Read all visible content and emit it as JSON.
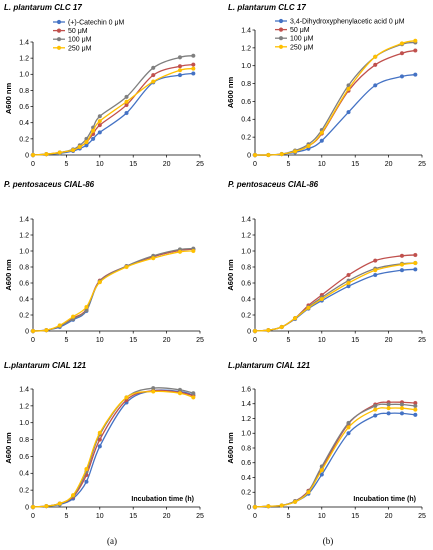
{
  "panel_labels": [
    "(a)",
    "(b)"
  ],
  "colors": [
    "#4472c4",
    "#c0504d",
    "#7f7f7f",
    "#ffc000"
  ],
  "chart_data": [
    {
      "type": "line",
      "title": "L. plantarum CLC 17",
      "ylabel": "A600 nm",
      "xlabel": "",
      "xlim": [
        0,
        25
      ],
      "ylim": [
        0,
        1.4
      ],
      "xticks": [
        0,
        5,
        10,
        15,
        20,
        25
      ],
      "yticks": [
        0,
        0.2,
        0.4,
        0.6,
        0.8,
        1.0,
        1.2,
        1.4
      ],
      "x": [
        0,
        2,
        4,
        6,
        7,
        8,
        9,
        10,
        14,
        18,
        22,
        24
      ],
      "legend": "top-left",
      "series": [
        {
          "name": "(+)-Catechin 0 μM",
          "color": "#4472c4",
          "values": [
            0,
            0.01,
            0.02,
            0.05,
            0.08,
            0.12,
            0.2,
            0.28,
            0.52,
            0.9,
            0.99,
            1.01
          ]
        },
        {
          "name": "50 μM",
          "color": "#c0504d",
          "values": [
            0,
            0.01,
            0.03,
            0.06,
            0.1,
            0.16,
            0.26,
            0.37,
            0.62,
            0.99,
            1.1,
            1.12
          ]
        },
        {
          "name": "100 μM",
          "color": "#7f7f7f",
          "values": [
            0,
            0.01,
            0.03,
            0.07,
            0.12,
            0.2,
            0.34,
            0.48,
            0.72,
            1.08,
            1.21,
            1.23
          ]
        },
        {
          "name": "250 μM",
          "color": "#ffc000",
          "values": [
            0,
            0.01,
            0.03,
            0.06,
            0.1,
            0.16,
            0.3,
            0.42,
            0.66,
            0.91,
            1.05,
            1.07
          ]
        }
      ]
    },
    {
      "type": "line",
      "title": "L. plantarum CLC 17",
      "ylabel": "A600 nm",
      "xlabel": "",
      "xlim": [
        0,
        25
      ],
      "ylim": [
        0,
        1.4
      ],
      "xticks": [
        0,
        5,
        10,
        15,
        20,
        25
      ],
      "yticks": [
        0,
        0.2,
        0.4,
        0.6,
        0.8,
        1.0,
        1.2,
        1.4
      ],
      "x": [
        0,
        2,
        4,
        6,
        8,
        10,
        14,
        18,
        22,
        24
      ],
      "legend": "top-left",
      "series": [
        {
          "name": "3,4-Dihydroxyphenylacetic acid 0 μM",
          "color": "#4472c4",
          "values": [
            0,
            0,
            0.01,
            0.03,
            0.07,
            0.16,
            0.48,
            0.78,
            0.88,
            0.9
          ]
        },
        {
          "name": "50 μM",
          "color": "#c0504d",
          "values": [
            0,
            0,
            0.01,
            0.04,
            0.1,
            0.24,
            0.72,
            1.01,
            1.14,
            1.17
          ]
        },
        {
          "name": "100 μM",
          "color": "#7f7f7f",
          "values": [
            0,
            0,
            0.01,
            0.05,
            0.12,
            0.28,
            0.78,
            1.1,
            1.24,
            1.26
          ]
        },
        {
          "name": "250 μM",
          "color": "#ffc000",
          "values": [
            0,
            0,
            0.01,
            0.04,
            0.1,
            0.25,
            0.74,
            1.1,
            1.25,
            1.28
          ]
        }
      ]
    },
    {
      "type": "line",
      "title": "P. pentosaceus CIAL-86",
      "ylabel": "A600 nm",
      "xlabel": "",
      "xlim": [
        0,
        25
      ],
      "ylim": [
        0,
        1.4
      ],
      "xticks": [
        0,
        5,
        10,
        15,
        20,
        25
      ],
      "yticks": [
        0,
        0.2,
        0.4,
        0.6,
        0.8,
        1.0,
        1.2,
        1.4
      ],
      "x": [
        0,
        2,
        4,
        6,
        8,
        10,
        14,
        18,
        22,
        24
      ],
      "legend": "none",
      "series": [
        {
          "name": "",
          "color": "#4472c4",
          "values": [
            0,
            0.01,
            0.05,
            0.14,
            0.25,
            0.62,
            0.81,
            0.93,
            1.01,
            1.02
          ]
        },
        {
          "name": "",
          "color": "#c0504d",
          "values": [
            0,
            0.01,
            0.06,
            0.16,
            0.27,
            0.63,
            0.81,
            0.93,
            1.01,
            1.02
          ]
        },
        {
          "name": "",
          "color": "#7f7f7f",
          "values": [
            0,
            0.01,
            0.06,
            0.15,
            0.26,
            0.62,
            0.81,
            0.94,
            1.02,
            1.03
          ]
        },
        {
          "name": "",
          "color": "#ffc000",
          "values": [
            0,
            0.01,
            0.07,
            0.18,
            0.3,
            0.61,
            0.8,
            0.91,
            0.99,
            1.0
          ]
        }
      ]
    },
    {
      "type": "line",
      "title": "P. pentosaceus CIAL-86",
      "ylabel": "A600 nm",
      "xlabel": "",
      "xlim": [
        0,
        25
      ],
      "ylim": [
        0,
        1.4
      ],
      "xticks": [
        0,
        5,
        10,
        15,
        20,
        25
      ],
      "yticks": [
        0,
        0.2,
        0.4,
        0.6,
        0.8,
        1.0,
        1.2,
        1.4
      ],
      "x": [
        0,
        2,
        4,
        6,
        8,
        10,
        14,
        18,
        22,
        24
      ],
      "legend": "none",
      "series": [
        {
          "name": "",
          "color": "#4472c4",
          "values": [
            0,
            0.01,
            0.05,
            0.15,
            0.28,
            0.38,
            0.56,
            0.7,
            0.76,
            0.77
          ]
        },
        {
          "name": "",
          "color": "#c0504d",
          "values": [
            0,
            0.01,
            0.05,
            0.16,
            0.32,
            0.45,
            0.7,
            0.88,
            0.94,
            0.95
          ]
        },
        {
          "name": "",
          "color": "#7f7f7f",
          "values": [
            0,
            0.01,
            0.05,
            0.16,
            0.3,
            0.42,
            0.63,
            0.78,
            0.84,
            0.85
          ]
        },
        {
          "name": "",
          "color": "#ffc000",
          "values": [
            0,
            0.01,
            0.05,
            0.16,
            0.29,
            0.4,
            0.6,
            0.76,
            0.83,
            0.85
          ]
        }
      ]
    },
    {
      "type": "line",
      "title": "L.plantarum CIAL 121",
      "ylabel": "A600 nm",
      "xlabel": "Incubation time (h)",
      "xlim": [
        0,
        25
      ],
      "ylim": [
        0,
        1.4
      ],
      "xticks": [
        0,
        5,
        10,
        15,
        20,
        25
      ],
      "yticks": [
        0,
        0.2,
        0.4,
        0.6,
        0.8,
        1.0,
        1.2,
        1.4
      ],
      "x": [
        0,
        2,
        4,
        6,
        8,
        10,
        14,
        18,
        22,
        24
      ],
      "legend": "none",
      "series": [
        {
          "name": "",
          "color": "#4472c4",
          "values": [
            0,
            0.01,
            0.03,
            0.1,
            0.3,
            0.72,
            1.24,
            1.38,
            1.37,
            1.33
          ]
        },
        {
          "name": "",
          "color": "#c0504d",
          "values": [
            0,
            0.01,
            0.04,
            0.12,
            0.38,
            0.8,
            1.27,
            1.38,
            1.36,
            1.32
          ]
        },
        {
          "name": "",
          "color": "#7f7f7f",
          "values": [
            0,
            0.01,
            0.04,
            0.13,
            0.42,
            0.86,
            1.3,
            1.41,
            1.39,
            1.35
          ]
        },
        {
          "name": "",
          "color": "#ffc000",
          "values": [
            0,
            0.01,
            0.04,
            0.14,
            0.45,
            0.88,
            1.3,
            1.37,
            1.35,
            1.3
          ]
        }
      ]
    },
    {
      "type": "line",
      "title": "L.plantarum CIAL 121",
      "ylabel": "A600 nm",
      "xlabel": "Incubation time (h)",
      "xlim": [
        0,
        25
      ],
      "ylim": [
        0,
        1.6
      ],
      "xticks": [
        0,
        5,
        10,
        15,
        20,
        25
      ],
      "yticks": [
        0,
        0.2,
        0.4,
        0.6,
        0.8,
        1.0,
        1.2,
        1.4,
        1.6
      ],
      "x": [
        0,
        2,
        4,
        6,
        8,
        10,
        14,
        18,
        20,
        22,
        24
      ],
      "legend": "none",
      "series": [
        {
          "name": "",
          "color": "#4472c4",
          "values": [
            0,
            0.01,
            0.02,
            0.07,
            0.18,
            0.44,
            1.0,
            1.24,
            1.27,
            1.27,
            1.25
          ]
        },
        {
          "name": "",
          "color": "#c0504d",
          "values": [
            0,
            0.01,
            0.02,
            0.08,
            0.22,
            0.52,
            1.13,
            1.39,
            1.42,
            1.42,
            1.41
          ]
        },
        {
          "name": "",
          "color": "#7f7f7f",
          "values": [
            0,
            0.01,
            0.02,
            0.08,
            0.21,
            0.55,
            1.14,
            1.37,
            1.39,
            1.39,
            1.37
          ]
        },
        {
          "name": "",
          "color": "#ffc000",
          "values": [
            0,
            0.01,
            0.02,
            0.07,
            0.2,
            0.5,
            1.08,
            1.32,
            1.34,
            1.34,
            1.32
          ]
        }
      ]
    }
  ]
}
